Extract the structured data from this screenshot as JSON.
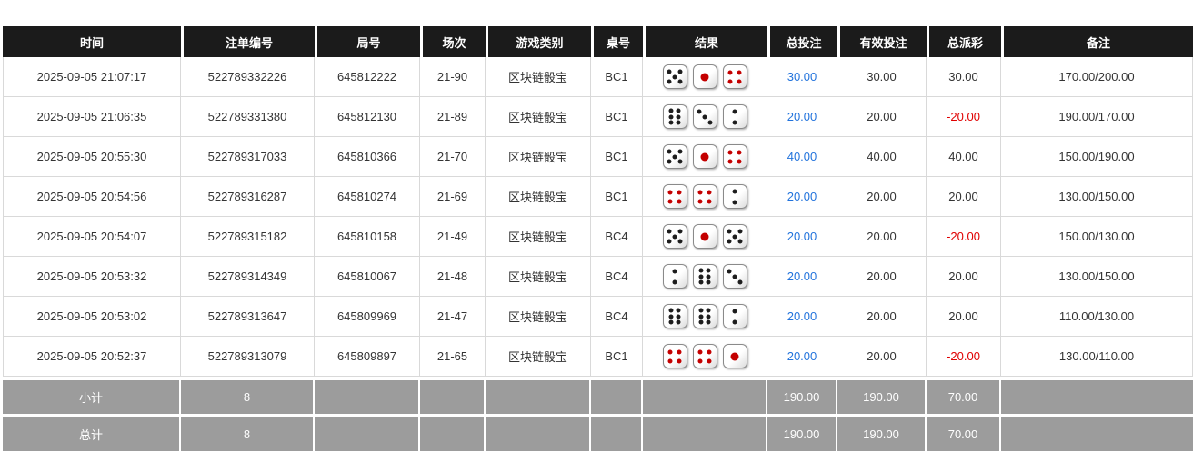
{
  "table": {
    "columns": [
      {
        "key": "time",
        "label": "时间"
      },
      {
        "key": "bet_id",
        "label": "注单编号"
      },
      {
        "key": "round_id",
        "label": "局号"
      },
      {
        "key": "session",
        "label": "场次"
      },
      {
        "key": "game_type",
        "label": "游戏类别"
      },
      {
        "key": "table_no",
        "label": "桌号"
      },
      {
        "key": "result",
        "label": "结果"
      },
      {
        "key": "total_bet",
        "label": "总投注"
      },
      {
        "key": "valid_bet",
        "label": "有效投注"
      },
      {
        "key": "payout",
        "label": "总派彩"
      },
      {
        "key": "remark",
        "label": "备注"
      }
    ],
    "rows": [
      {
        "time": "2025-09-05 21:07:17",
        "bet_id": "522789332226",
        "round_id": "645812222",
        "session": "21-90",
        "game_type": "区块链骰宝",
        "table_no": "BC1",
        "result": [
          5,
          1,
          4
        ],
        "total_bet": "30.00",
        "valid_bet": "30.00",
        "payout": "30.00",
        "remark": "170.00/200.00"
      },
      {
        "time": "2025-09-05 21:06:35",
        "bet_id": "522789331380",
        "round_id": "645812130",
        "session": "21-89",
        "game_type": "区块链骰宝",
        "table_no": "BC1",
        "result": [
          6,
          3,
          2
        ],
        "total_bet": "20.00",
        "valid_bet": "20.00",
        "payout": "-20.00",
        "remark": "190.00/170.00"
      },
      {
        "time": "2025-09-05 20:55:30",
        "bet_id": "522789317033",
        "round_id": "645810366",
        "session": "21-70",
        "game_type": "区块链骰宝",
        "table_no": "BC1",
        "result": [
          5,
          1,
          4
        ],
        "total_bet": "40.00",
        "valid_bet": "40.00",
        "payout": "40.00",
        "remark": "150.00/190.00"
      },
      {
        "time": "2025-09-05 20:54:56",
        "bet_id": "522789316287",
        "round_id": "645810274",
        "session": "21-69",
        "game_type": "区块链骰宝",
        "table_no": "BC1",
        "result": [
          4,
          4,
          2
        ],
        "total_bet": "20.00",
        "valid_bet": "20.00",
        "payout": "20.00",
        "remark": "130.00/150.00"
      },
      {
        "time": "2025-09-05 20:54:07",
        "bet_id": "522789315182",
        "round_id": "645810158",
        "session": "21-49",
        "game_type": "区块链骰宝",
        "table_no": "BC4",
        "result": [
          5,
          1,
          5
        ],
        "total_bet": "20.00",
        "valid_bet": "20.00",
        "payout": "-20.00",
        "remark": "150.00/130.00"
      },
      {
        "time": "2025-09-05 20:53:32",
        "bet_id": "522789314349",
        "round_id": "645810067",
        "session": "21-48",
        "game_type": "区块链骰宝",
        "table_no": "BC4",
        "result": [
          2,
          6,
          3
        ],
        "total_bet": "20.00",
        "valid_bet": "20.00",
        "payout": "20.00",
        "remark": "130.00/150.00"
      },
      {
        "time": "2025-09-05 20:53:02",
        "bet_id": "522789313647",
        "round_id": "645809969",
        "session": "21-47",
        "game_type": "区块链骰宝",
        "table_no": "BC4",
        "result": [
          6,
          6,
          2
        ],
        "total_bet": "20.00",
        "valid_bet": "20.00",
        "payout": "20.00",
        "remark": "110.00/130.00"
      },
      {
        "time": "2025-09-05 20:52:37",
        "bet_id": "522789313079",
        "round_id": "645809897",
        "session": "21-65",
        "game_type": "区块链骰宝",
        "table_no": "BC1",
        "result": [
          4,
          4,
          1
        ],
        "total_bet": "20.00",
        "valid_bet": "20.00",
        "payout": "-20.00",
        "remark": "130.00/110.00"
      }
    ],
    "summary_rows": [
      {
        "label": "小计",
        "count": "8",
        "total_bet": "190.00",
        "valid_bet": "190.00",
        "payout": "70.00"
      },
      {
        "label": "总计",
        "count": "8",
        "total_bet": "190.00",
        "valid_bet": "190.00",
        "payout": "70.00"
      }
    ],
    "colors": {
      "header_bg": "#1b1b1b",
      "header_text": "#ffffff",
      "total_bet_blue": "#2273dc",
      "negative_red": "#e00000",
      "summary_bg": "#9c9c9c",
      "dice_pip_black": "#1d1d1d",
      "dice_pip_red": "#c40000"
    },
    "dice_red_values": [
      1,
      4
    ]
  }
}
